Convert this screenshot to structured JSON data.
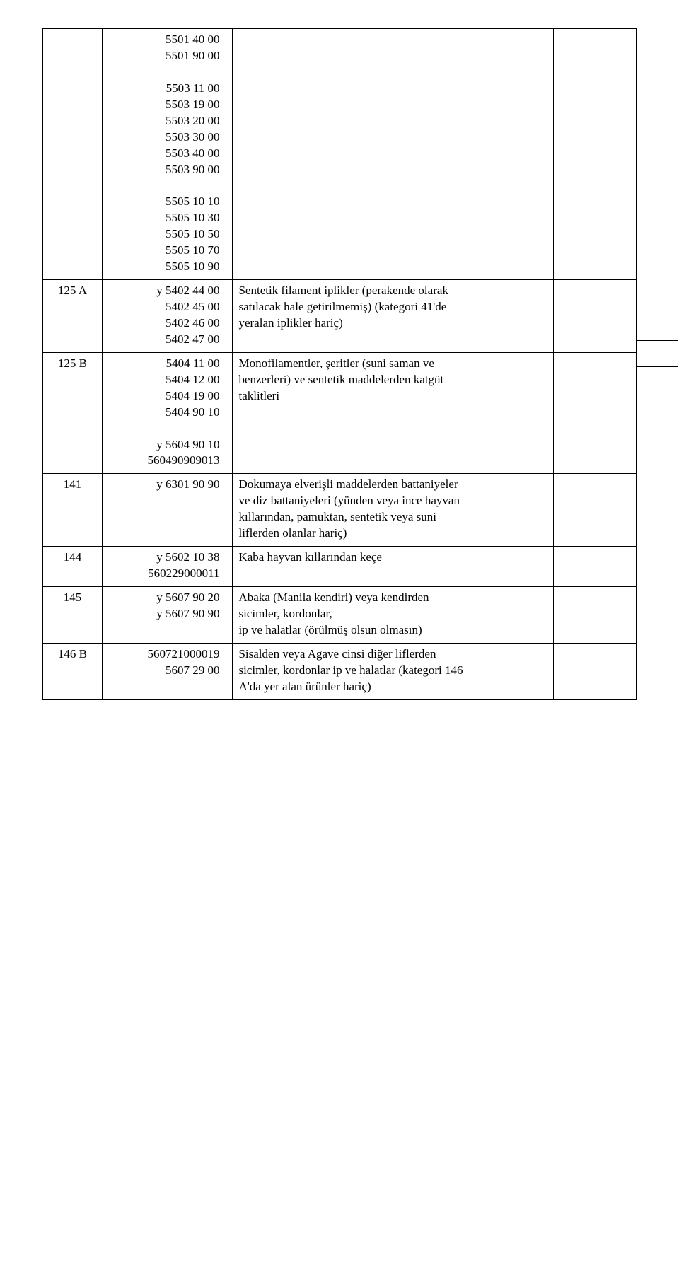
{
  "row1": {
    "id": "",
    "codes": "5501 40 00\n5501 90 00\n\n5503 11 00\n5503 19 00\n5503 20 00\n5503 30 00\n5503 40 00\n5503 90 00\n\n5505 10 10\n5505 10 30\n5505 10 50\n5505 10 70\n5505 10 90",
    "desc": ""
  },
  "row2": {
    "id": "125 A",
    "codes": "y 5402 44 00\n5402 45 00\n5402 46 00\n5402 47 00",
    "desc": "Sentetik filament iplikler (perakende olarak satılacak hale getirilmemiş) (kategori 41'de yeralan iplikler hariç)"
  },
  "row3": {
    "id": "125 B",
    "codes": "5404 11 00\n5404 12 00\n5404 19 00\n5404 90 10\n\ny 5604 90 10\n560490909013",
    "desc": "Monofilamentler, şeritler (suni saman ve benzerleri) ve sentetik maddelerden katgüt taklitleri"
  },
  "row4": {
    "id": "141",
    "codes": "y 6301 90 90",
    "desc": "Dokumaya elverişli maddelerden battaniyeler ve diz battaniyeleri (yünden veya ince hayvan kıllarından, pamuktan, sentetik veya suni liflerden olanlar hariç)"
  },
  "row5": {
    "id": "144",
    "codes": "y 5602 10 38\n560229000011",
    "desc": "Kaba hayvan kıllarından keçe"
  },
  "row6": {
    "id": "145",
    "codes": "y  5607 90 20\ny 5607 90 90",
    "desc": "Abaka (Manila kendiri) veya kendirden sicimler, kordonlar,\nip ve halatlar (örülmüş olsun olmasın)"
  },
  "row7": {
    "id": "146 B",
    "codes": "560721000019\n5607 29 00",
    "desc": "Sisalden veya Agave cinsi diğer liflerden sicimler, kordonlar ip ve halatlar (kategori 146 A'da yer alan ürünler hariç)"
  }
}
